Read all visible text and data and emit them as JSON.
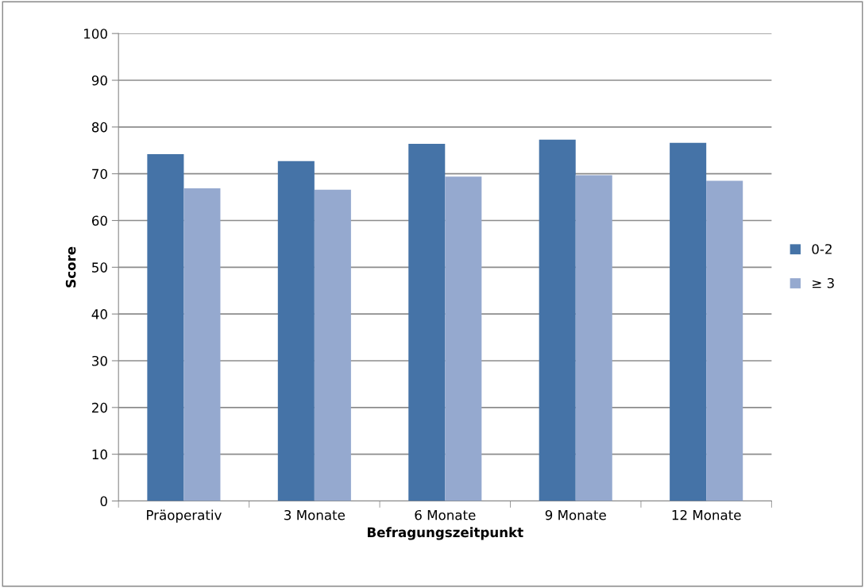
{
  "chart_data": {
    "type": "bar",
    "xlabel": "Befragungszeitpunkt",
    "ylabel": "Score",
    "categories": [
      "Präoperativ",
      "3 Monate",
      "6 Monate",
      "9 Monate",
      "12 Monate"
    ],
    "series": [
      {
        "name": "0-2",
        "color": "#4573a7",
        "values": [
          74.2,
          72.7,
          76.4,
          77.3,
          76.6
        ]
      },
      {
        "name": "≥ 3",
        "color": "#95a9cf",
        "values": [
          66.9,
          66.6,
          69.4,
          69.7,
          68.5
        ]
      }
    ],
    "ylim": [
      0,
      100
    ],
    "yticks": [
      0,
      10,
      20,
      30,
      40,
      50,
      60,
      70,
      80,
      90,
      100
    ],
    "grid": "y",
    "legend": "right"
  }
}
